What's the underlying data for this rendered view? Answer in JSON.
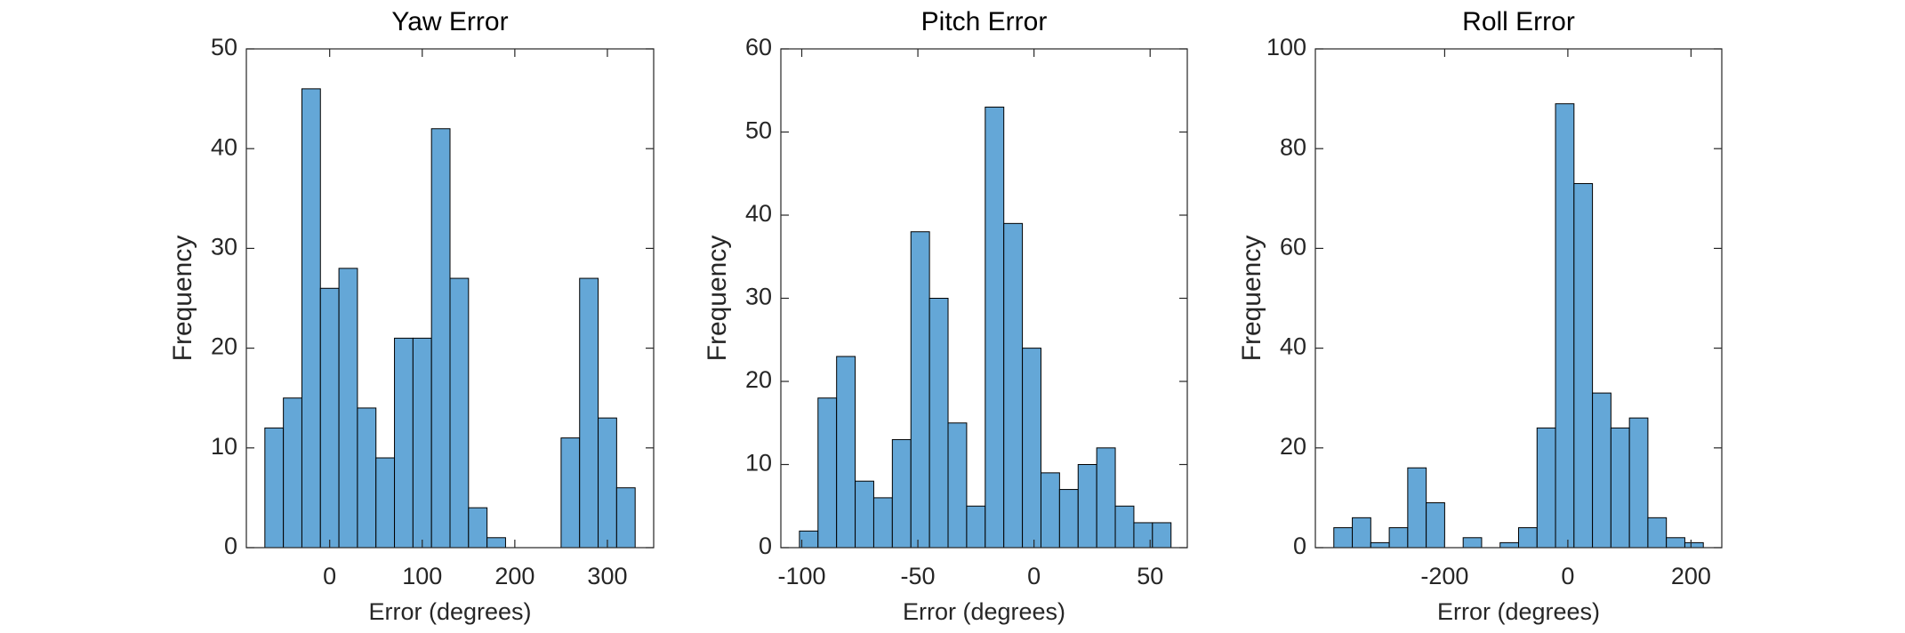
{
  "chart_data": [
    {
      "type": "histogram",
      "title": "Yaw Error",
      "xlabel": "Error (degrees)",
      "ylabel": "Frequency",
      "color": "#64a7d7",
      "bins": [
        -70,
        -50,
        -30,
        -10,
        10,
        30,
        50,
        70,
        90,
        110,
        130,
        150,
        170,
        190,
        210,
        230,
        250,
        270,
        290,
        310,
        330
      ],
      "values": [
        12,
        15,
        46,
        26,
        28,
        14,
        9,
        21,
        21,
        42,
        27,
        4,
        1,
        0,
        0,
        0,
        11,
        27,
        13,
        6
      ],
      "xlim": [
        -90,
        350
      ],
      "ylim": [
        0,
        50
      ],
      "xticks": [
        0,
        100,
        200,
        300
      ],
      "yticks": [
        0,
        10,
        20,
        30,
        40,
        50
      ]
    },
    {
      "type": "histogram",
      "title": "Pitch Error",
      "xlabel": "Error (degrees)",
      "ylabel": "Frequency",
      "color": "#64a7d7",
      "bins": [
        -101,
        -93,
        -85,
        -77,
        -69,
        -61,
        -53,
        -45,
        -37,
        -29,
        -21,
        -13,
        -5,
        3,
        11,
        19,
        27,
        35,
        43,
        51,
        59
      ],
      "values": [
        2,
        18,
        23,
        8,
        6,
        13,
        38,
        30,
        15,
        5,
        53,
        39,
        24,
        9,
        7,
        10,
        12,
        5,
        3,
        3
      ],
      "xlim": [
        -109,
        66
      ],
      "ylim": [
        0,
        60
      ],
      "xticks": [
        -100,
        -50,
        0,
        50
      ],
      "yticks": [
        0,
        10,
        20,
        30,
        40,
        50,
        60
      ]
    },
    {
      "type": "histogram",
      "title": "Roll Error",
      "xlabel": "Error (degrees)",
      "ylabel": "Frequency",
      "color": "#64a7d7",
      "bins": [
        -380,
        -350,
        -320,
        -290,
        -260,
        -230,
        -200,
        -170,
        -140,
        -110,
        -80,
        -50,
        -20,
        10,
        40,
        70,
        100,
        130,
        160,
        190,
        220
      ],
      "values": [
        4,
        6,
        1,
        4,
        16,
        9,
        0,
        2,
        0,
        1,
        4,
        24,
        89,
        73,
        31,
        24,
        26,
        6,
        2,
        1
      ],
      "xlim": [
        -410,
        250
      ],
      "ylim": [
        0,
        100
      ],
      "xticks": [
        -200,
        0,
        200
      ],
      "yticks": [
        0,
        20,
        40,
        60,
        80,
        100
      ]
    }
  ]
}
